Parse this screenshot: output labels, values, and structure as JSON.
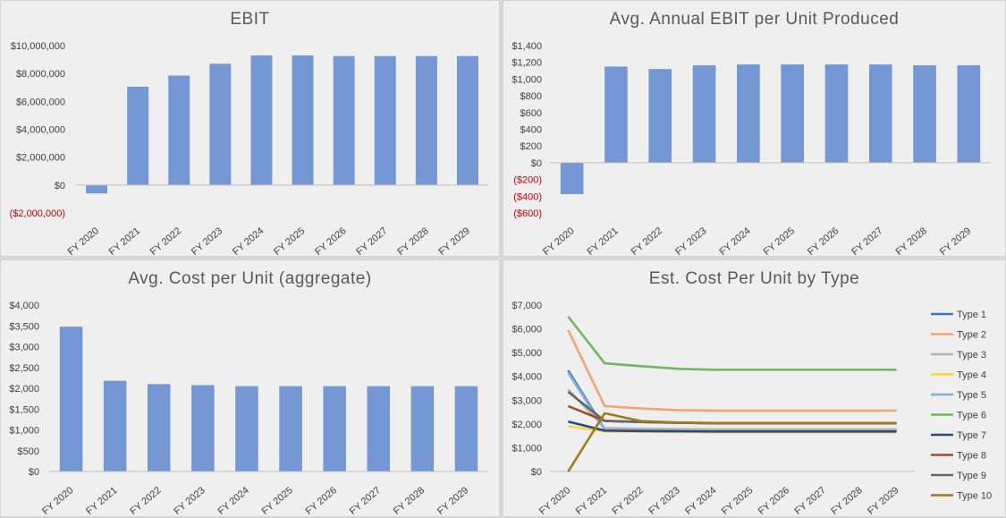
{
  "chart_data": [
    {
      "type": "bar",
      "title": "EBIT",
      "categories": [
        "FY 2020",
        "FY 2021",
        "FY 2022",
        "FY 2023",
        "FY 2024",
        "FY 2025",
        "FY 2026",
        "FY 2027",
        "FY 2028",
        "FY 2029"
      ],
      "values": [
        -600000,
        7050000,
        7850000,
        8700000,
        9300000,
        9300000,
        9250000,
        9250000,
        9250000,
        9250000
      ],
      "ylim": [
        -2000000,
        10000000
      ],
      "yticks": [
        -2000000,
        0,
        2000000,
        4000000,
        6000000,
        8000000,
        10000000
      ],
      "ytick_labels": [
        "($2,000,000)",
        "$0",
        "$2,000,000",
        "$4,000,000",
        "$6,000,000",
        "$8,000,000",
        "$10,000,000"
      ],
      "bar_color": "#7597d3",
      "negative_label_color": "#c00000",
      "grid": false
    },
    {
      "type": "bar",
      "title": "Avg. Annual EBIT per Unit Produced",
      "categories": [
        "FY 2020",
        "FY 2021",
        "FY 2022",
        "FY 2023",
        "FY 2024",
        "FY 2025",
        "FY 2026",
        "FY 2027",
        "FY 2028",
        "FY 2029"
      ],
      "values": [
        -375,
        1150,
        1120,
        1165,
        1175,
        1175,
        1175,
        1175,
        1165,
        1165
      ],
      "ylim": [
        -600,
        1400
      ],
      "yticks": [
        -600,
        -400,
        -200,
        0,
        200,
        400,
        600,
        800,
        1000,
        1200,
        1400
      ],
      "ytick_labels": [
        "($600)",
        "($400)",
        "($200)",
        "$0",
        "$200",
        "$400",
        "$600",
        "$800",
        "$1,000",
        "$1,200",
        "$1,400"
      ],
      "bar_color": "#7597d3",
      "negative_label_color": "#c00000",
      "grid": false
    },
    {
      "type": "bar",
      "title": "Avg. Cost per Unit (aggregate)",
      "categories": [
        "FY 2020",
        "FY 2021",
        "FY 2022",
        "FY 2023",
        "FY 2024",
        "FY 2025",
        "FY 2026",
        "FY 2027",
        "FY 2028",
        "FY 2029"
      ],
      "values": [
        3480,
        2180,
        2100,
        2075,
        2050,
        2050,
        2050,
        2050,
        2050,
        2050
      ],
      "ylim": [
        0,
        4000
      ],
      "yticks": [
        0,
        500,
        1000,
        1500,
        2000,
        2500,
        3000,
        3500,
        4000
      ],
      "ytick_labels": [
        "$0",
        "$500",
        "$1,000",
        "$1,500",
        "$2,000",
        "$2,500",
        "$3,000",
        "$3,500",
        "$4,000"
      ],
      "bar_color": "#7597d3",
      "negative_label_color": "#c00000",
      "grid": false
    },
    {
      "type": "line",
      "title": "Est. Cost Per Unit by Type",
      "categories": [
        "FY 2020",
        "FY 2021",
        "FY 2022",
        "FY 2023",
        "FY 2024",
        "FY 2025",
        "FY 2026",
        "FY 2027",
        "FY 2028",
        "FY 2029"
      ],
      "ylim": [
        0,
        7000
      ],
      "yticks": [
        0,
        1000,
        2000,
        3000,
        4000,
        5000,
        6000,
        7000
      ],
      "ytick_labels": [
        "$0",
        "$1,000",
        "$2,000",
        "$3,000",
        "$4,000",
        "$5,000",
        "$6,000",
        "$7,000"
      ],
      "legend_position": "right",
      "grid": false,
      "series": [
        {
          "name": "Type 1",
          "color": "#4472c4",
          "values": [
            4250,
            1780,
            1760,
            1740,
            1730,
            1730,
            1730,
            1730,
            1730,
            1730
          ]
        },
        {
          "name": "Type 2",
          "color": "#f4a470",
          "values": [
            5950,
            2750,
            2650,
            2580,
            2560,
            2560,
            2560,
            2560,
            2560,
            2560
          ]
        },
        {
          "name": "Type 3",
          "color": "#b4b4b4",
          "values": [
            3450,
            1830,
            1800,
            1780,
            1770,
            1770,
            1770,
            1770,
            1770,
            1770
          ]
        },
        {
          "name": "Type 4",
          "color": "#ffd33f",
          "values": [
            1900,
            1680,
            1670,
            1660,
            1650,
            1650,
            1650,
            1650,
            1650,
            1650
          ]
        },
        {
          "name": "Type 5",
          "color": "#86b0dd",
          "values": [
            4150,
            1750,
            1720,
            1710,
            1700,
            1700,
            1700,
            1700,
            1700,
            1700
          ]
        },
        {
          "name": "Type 6",
          "color": "#71b661",
          "values": [
            6520,
            4550,
            4430,
            4320,
            4280,
            4280,
            4280,
            4280,
            4280,
            4280
          ]
        },
        {
          "name": "Type 7",
          "color": "#2f4a7c",
          "values": [
            2100,
            1720,
            1700,
            1690,
            1680,
            1680,
            1680,
            1680,
            1680,
            1680
          ]
        },
        {
          "name": "Type 8",
          "color": "#9e4d2b",
          "values": [
            2750,
            2130,
            2080,
            2050,
            2030,
            2030,
            2030,
            2030,
            2030,
            2030
          ]
        },
        {
          "name": "Type 9",
          "color": "#666666",
          "values": [
            3350,
            2130,
            2080,
            2050,
            2030,
            2030,
            2030,
            2030,
            2030,
            2030
          ]
        },
        {
          "name": "Type 10",
          "color": "#9c7c1e",
          "values": [
            0,
            2450,
            2120,
            2060,
            2040,
            2040,
            2040,
            2040,
            2040,
            2040
          ]
        }
      ]
    }
  ]
}
